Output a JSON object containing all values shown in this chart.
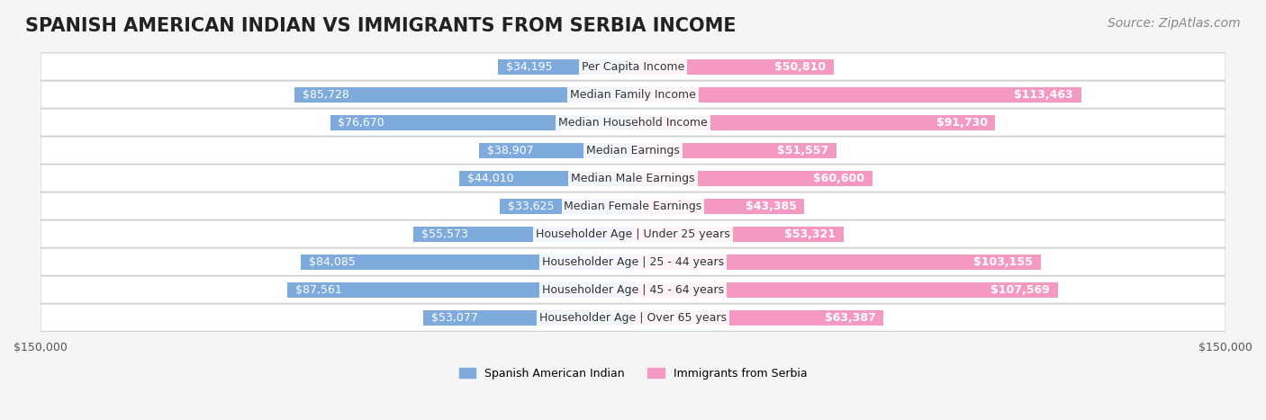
{
  "title": "SPANISH AMERICAN INDIAN VS IMMIGRANTS FROM SERBIA INCOME",
  "source": "Source: ZipAtlas.com",
  "categories": [
    "Per Capita Income",
    "Median Family Income",
    "Median Household Income",
    "Median Earnings",
    "Median Male Earnings",
    "Median Female Earnings",
    "Householder Age | Under 25 years",
    "Householder Age | 25 - 44 years",
    "Householder Age | 45 - 64 years",
    "Householder Age | Over 65 years"
  ],
  "left_values": [
    34195,
    85728,
    76670,
    38907,
    44010,
    33625,
    55573,
    84085,
    87561,
    53077
  ],
  "right_values": [
    50810,
    113463,
    91730,
    51557,
    60600,
    43385,
    53321,
    103155,
    107569,
    63387
  ],
  "left_labels": [
    "$34,195",
    "$85,728",
    "$76,670",
    "$38,907",
    "$44,010",
    "$33,625",
    "$55,573",
    "$84,085",
    "$87,561",
    "$53,077"
  ],
  "right_labels": [
    "$50,810",
    "$113,463",
    "$91,730",
    "$51,557",
    "$60,600",
    "$43,385",
    "$53,321",
    "$103,155",
    "$107,569",
    "$63,387"
  ],
  "left_color": "#7faadc",
  "right_color": "#f49ac2",
  "label_color_left_outside": "#555555",
  "label_color_right_outside": "#555555",
  "label_color_inside": "#ffffff",
  "max_value": 150000,
  "legend_left": "Spanish American Indian",
  "legend_right": "Immigrants from Serbia",
  "background_color": "#f5f5f5",
  "row_bg_color": "#ffffff",
  "bar_height": 0.55,
  "title_fontsize": 15,
  "source_fontsize": 10,
  "label_fontsize": 9,
  "category_fontsize": 9
}
